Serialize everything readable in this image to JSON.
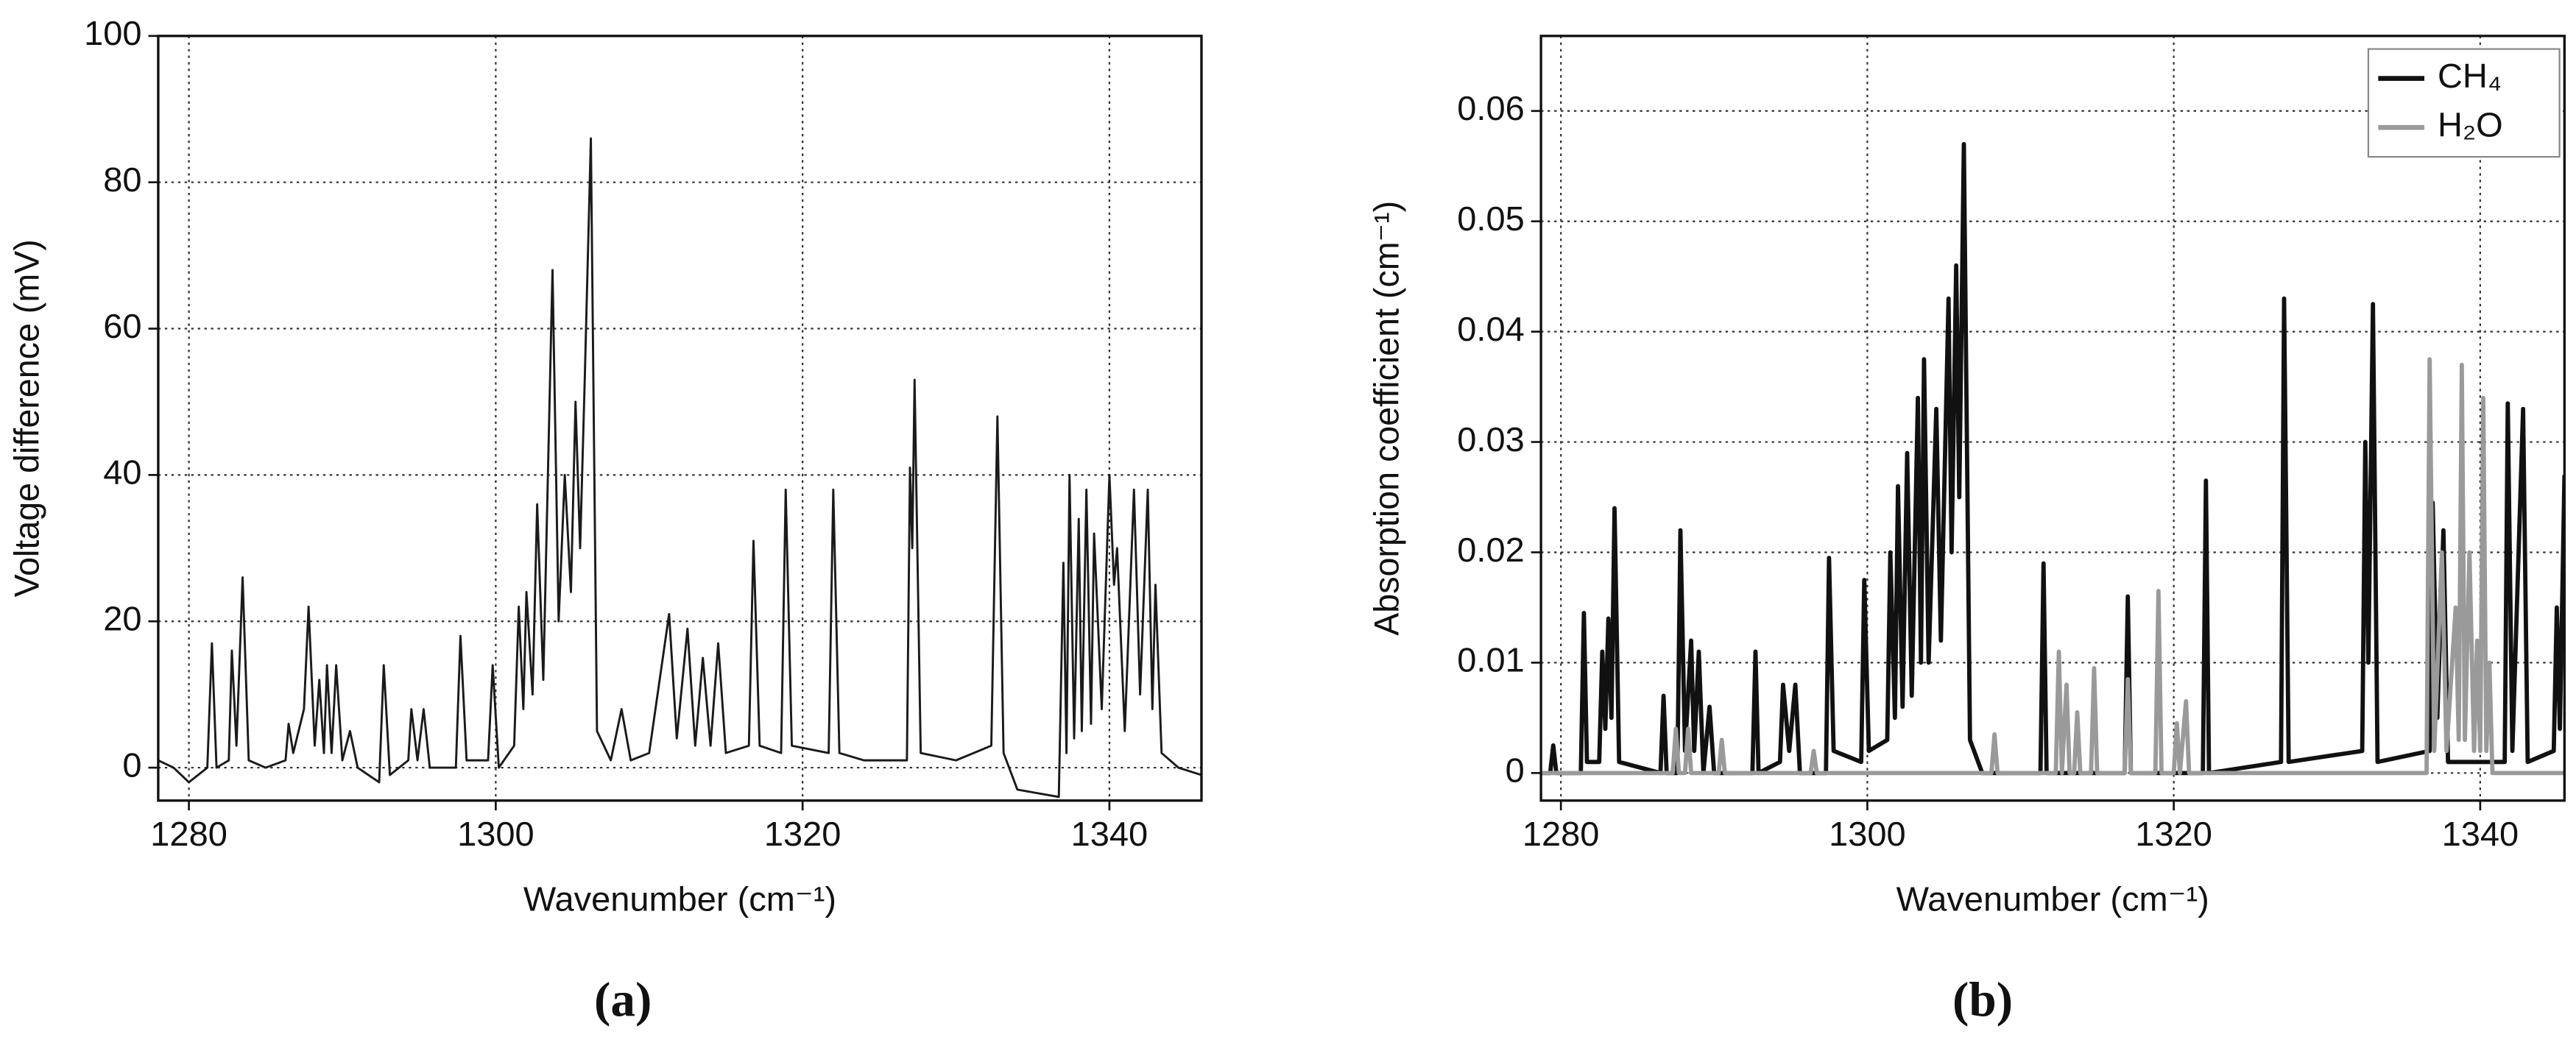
{
  "chart_data": [
    {
      "type": "line",
      "caption": "(a)",
      "x_label": "Wavenumber (cm⁻¹)",
      "y_label": "Voltage difference (mV)",
      "xlim": [
        1278,
        1346
      ],
      "xticks": [
        1280,
        1300,
        1320,
        1340
      ],
      "ylim": [
        -4.5,
        100
      ],
      "yticks": [
        0,
        20,
        40,
        60,
        80,
        100
      ],
      "grid": true,
      "color": "#1a1a1a",
      "x": [
        1278,
        1279,
        1280,
        1281.2,
        1281.5,
        1281.8,
        1282.6,
        1282.8,
        1283.1,
        1283.5,
        1283.9,
        1285,
        1286.3,
        1286.5,
        1286.8,
        1287.5,
        1287.8,
        1288.2,
        1288.5,
        1288.8,
        1289,
        1289.3,
        1289.6,
        1290,
        1290.5,
        1291,
        1292.4,
        1292.7,
        1293.1,
        1294.3,
        1294.5,
        1294.9,
        1295.3,
        1295.7,
        1297.4,
        1297.7,
        1298.1,
        1299.5,
        1299.8,
        1300.2,
        1301.2,
        1301.5,
        1301.8,
        1302,
        1302.4,
        1302.7,
        1303.1,
        1303.7,
        1304.1,
        1304.5,
        1304.9,
        1305.2,
        1305.5,
        1305.8,
        1306.2,
        1306.6,
        1307.5,
        1308.2,
        1308.8,
        1310,
        1311.3,
        1311.8,
        1312.5,
        1313,
        1313.5,
        1314,
        1314.5,
        1315,
        1316.5,
        1316.8,
        1317.2,
        1318.6,
        1318.9,
        1319.3,
        1321.7,
        1322,
        1322.4,
        1324,
        1326.8,
        1327,
        1327.15,
        1327.3,
        1327.7,
        1330,
        1332.3,
        1332.7,
        1333.1,
        1334,
        1336.7,
        1337,
        1337.2,
        1337.4,
        1337.7,
        1338,
        1338.2,
        1338.5,
        1338.8,
        1339,
        1339.5,
        1340,
        1340.3,
        1340.5,
        1341,
        1341.6,
        1342,
        1342.5,
        1342.8,
        1343,
        1343.4,
        1344.5,
        1346
      ],
      "values": [
        1,
        0,
        -2,
        0,
        17,
        0,
        1,
        16,
        3,
        26,
        1,
        0,
        1,
        6,
        2,
        8,
        22,
        3,
        12,
        2,
        14,
        2,
        14,
        1,
        5,
        0,
        -2,
        14,
        -1,
        1,
        8,
        1,
        8,
        0,
        0,
        18,
        1,
        1,
        14,
        0,
        3,
        22,
        8,
        24,
        10,
        36,
        12,
        68,
        20,
        40,
        24,
        50,
        30,
        53,
        86,
        5,
        1,
        8,
        1,
        2,
        21,
        4,
        19,
        3,
        15,
        3,
        17,
        2,
        3,
        31,
        3,
        2,
        38,
        3,
        2,
        38,
        2,
        1,
        1,
        41,
        30,
        53,
        2,
        1,
        3,
        48,
        2,
        -3,
        -4,
        28,
        2,
        40,
        4,
        34,
        5,
        38,
        6,
        32,
        8,
        40,
        25,
        30,
        5,
        38,
        10,
        38,
        8,
        25,
        2,
        0,
        -1
      ]
    },
    {
      "type": "line",
      "caption": "(b)",
      "x_label": "Wavenumber (cm⁻¹)",
      "y_label": "Absorption coefficient  (cm⁻¹)",
      "xlim": [
        1278.7,
        1345.5
      ],
      "xticks": [
        1280,
        1300,
        1320,
        1340
      ],
      "ylim": [
        -0.0025,
        0.0668
      ],
      "yticks": [
        0,
        0.01,
        0.02,
        0.03,
        0.04,
        0.05,
        0.06
      ],
      "grid": true,
      "legend": "top-right",
      "series": [
        {
          "name": "CH₄",
          "color": "#111111",
          "x": [
            1278.7,
            1279.3,
            1279.5,
            1279.7,
            1281.3,
            1281.5,
            1281.7,
            1282.5,
            1282.7,
            1282.9,
            1283.1,
            1283.3,
            1283.5,
            1283.8,
            1286.5,
            1286.7,
            1286.9,
            1287.6,
            1287.8,
            1288.1,
            1288.5,
            1288.7,
            1289,
            1289.3,
            1289.7,
            1290,
            1292.5,
            1292.7,
            1292.9,
            1294.3,
            1294.5,
            1294.9,
            1295.3,
            1295.6,
            1297.3,
            1297.5,
            1297.8,
            1299.6,
            1299.8,
            1300.1,
            1301.3,
            1301.5,
            1301.8,
            1302,
            1302.3,
            1302.6,
            1302.9,
            1303.3,
            1303.5,
            1303.7,
            1304,
            1304.5,
            1304.8,
            1305.3,
            1305.5,
            1305.8,
            1306,
            1306.3,
            1306.7,
            1307.5,
            1311.3,
            1311.5,
            1311.7,
            1316.8,
            1317,
            1317.2,
            1321.9,
            1322.1,
            1322.3,
            1327,
            1327.2,
            1327.5,
            1332.3,
            1332.5,
            1332.7,
            1333,
            1333.3,
            1336.7,
            1336.9,
            1337.2,
            1337.6,
            1337.9,
            1341.6,
            1341.8,
            1342.1,
            1342.8,
            1343.1,
            1344.8,
            1345,
            1345.2,
            1345.5
          ],
          "values": [
            0,
            0,
            0.0025,
            0,
            0,
            0.0145,
            0.001,
            0.001,
            0.011,
            0.004,
            0.014,
            0.005,
            0.024,
            0.001,
            0,
            0.007,
            0,
            0,
            0.022,
            0.002,
            0.012,
            0.002,
            0.011,
            0,
            0.006,
            0,
            0,
            0.011,
            0,
            0.001,
            0.008,
            0.002,
            0.008,
            0,
            0,
            0.0195,
            0.002,
            0.001,
            0.0175,
            0.002,
            0.003,
            0.02,
            0.005,
            0.026,
            0.006,
            0.029,
            0.007,
            0.034,
            0.01,
            0.0375,
            0.01,
            0.033,
            0.012,
            0.043,
            0.02,
            0.046,
            0.025,
            0.057,
            0.003,
            0,
            0,
            0.019,
            0,
            0,
            0.016,
            0,
            0,
            0.0265,
            0,
            0.001,
            0.043,
            0.001,
            0.002,
            0.03,
            0.01,
            0.0425,
            0.001,
            0.002,
            0.0245,
            0.005,
            0.022,
            0.001,
            0.001,
            0.0335,
            0.002,
            0.033,
            0.001,
            0.002,
            0.015,
            0.004,
            0.027
          ]
        },
        {
          "name": "H₂O",
          "color": "#9a9a9a",
          "x": [
            1278.7,
            1287.3,
            1287.5,
            1287.7,
            1288.1,
            1288.3,
            1288.5,
            1290.3,
            1290.5,
            1290.7,
            1296.3,
            1296.5,
            1296.7,
            1308.1,
            1308.3,
            1308.5,
            1312.3,
            1312.5,
            1312.7,
            1313,
            1313.2,
            1313.5,
            1313.7,
            1313.9,
            1314.6,
            1314.8,
            1315,
            1316.8,
            1317,
            1317.2,
            1318.8,
            1319,
            1319.2,
            1320,
            1320.2,
            1320.4,
            1320.8,
            1321,
            1336.5,
            1336.7,
            1337,
            1337.5,
            1337.8,
            1338.4,
            1338.6,
            1338.8,
            1339,
            1339.3,
            1339.6,
            1339.8,
            1340,
            1340.2,
            1340.4,
            1340.6,
            1340.8,
            1345.5
          ],
          "values": [
            0,
            0,
            0.004,
            0,
            0,
            0.004,
            0,
            0,
            0.003,
            0,
            0,
            0.002,
            0,
            0,
            0.0035,
            0,
            0,
            0.011,
            0,
            0.008,
            0,
            0,
            0.0055,
            0,
            0,
            0.0095,
            0,
            0,
            0.0085,
            0,
            0,
            0.0165,
            0,
            0,
            0.0045,
            0,
            0.0065,
            0,
            0,
            0.0375,
            0.002,
            0.02,
            0.002,
            0.015,
            0.003,
            0.037,
            0.003,
            0.02,
            0.002,
            0.012,
            0.002,
            0.034,
            0.002,
            0.01,
            0,
            0
          ]
        }
      ]
    }
  ]
}
